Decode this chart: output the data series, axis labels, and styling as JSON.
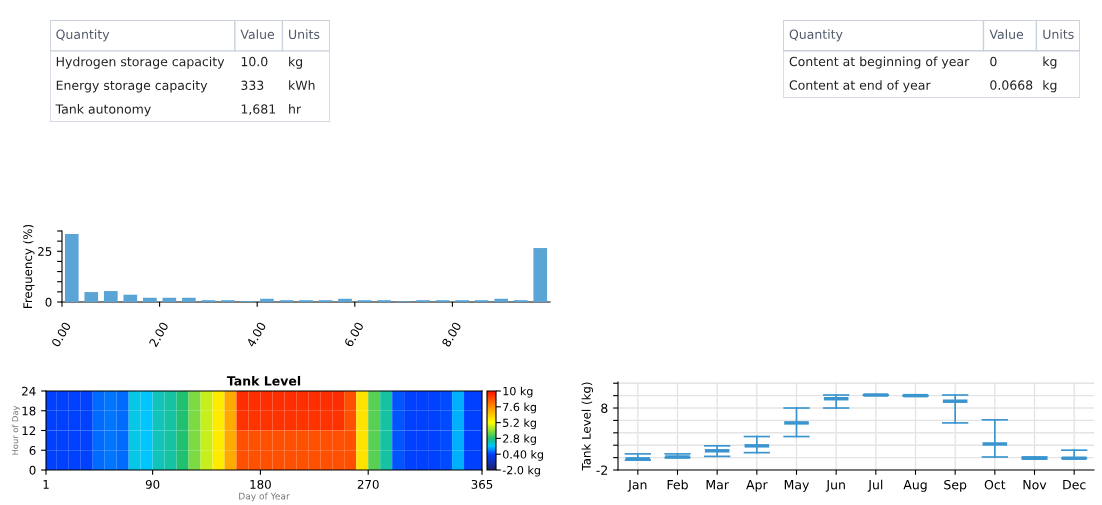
{
  "chart_data": [
    {
      "type": "other",
      "categories": [
        "Quantity",
        "Value",
        "Units"
      ],
      "cell_labels": [
        [
          "Hydrogen storage capacity",
          "10.0",
          "kg"
        ],
        [
          "Energy storage capacity",
          "333",
          "kWh"
        ],
        [
          "Tank autonomy",
          "1,681",
          "hr"
        ]
      ]
    },
    {
      "type": "other",
      "categories": [
        "Quantity",
        "Value",
        "Units"
      ],
      "cell_labels": [
        [
          "Content at beginning of year",
          "0",
          "kg"
        ],
        [
          "Content at end of year",
          "0.0668",
          "kg"
        ]
      ]
    },
    {
      "type": "histogram",
      "ylabel": "Frequency (%)",
      "color": "#5aa5d6",
      "bins": [
        0,
        0.4,
        0.8,
        1.2,
        1.6,
        2.0,
        2.4,
        2.8,
        3.2,
        3.6,
        4.0,
        4.4,
        4.8,
        5.2,
        5.6,
        6.0,
        6.4,
        6.8,
        7.2,
        7.6,
        8.0,
        8.4,
        8.8,
        9.2,
        9.6,
        10.0
      ],
      "values": [
        33.5,
        4.9,
        5.4,
        3.6,
        2.1,
        2.1,
        2.1,
        0.9,
        0.9,
        0.4,
        1.6,
        0.9,
        0.9,
        0.9,
        1.6,
        0.9,
        0.9,
        0.4,
        0.9,
        0.9,
        0.9,
        0.9,
        1.6,
        0.9,
        26.6
      ],
      "xlim": [
        0,
        10
      ],
      "xticks": [
        {
          "value": 0,
          "label": "0.00"
        },
        {
          "value": 2,
          "label": "2.00"
        },
        {
          "value": 4,
          "label": "4.00"
        },
        {
          "value": 6,
          "label": "6.00"
        },
        {
          "value": 8,
          "label": "8.00"
        }
      ],
      "ylim": [
        0,
        35
      ],
      "yticks": [
        0,
        {
          "value": 5,
          "label": null
        },
        {
          "value": 10,
          "label": null
        },
        {
          "value": 15,
          "label": null
        },
        {
          "value": 20,
          "label": null
        },
        25,
        {
          "value": 30,
          "label": null
        },
        {
          "value": 35,
          "label": null
        }
      ]
    },
    {
      "type": "heatmap",
      "title": "Tank Level",
      "xlabel": "Day of Year",
      "ylabel": "Hour of Day",
      "x": [
        5,
        15,
        25,
        35,
        45,
        55,
        65,
        75,
        85,
        95,
        105,
        115,
        125,
        135,
        145,
        155,
        165,
        175,
        185,
        195,
        205,
        215,
        225,
        235,
        245,
        255,
        265,
        275,
        285,
        295,
        305,
        315,
        325,
        335,
        345,
        355,
        365
      ],
      "y": [
        21,
        15,
        9,
        3
      ],
      "cells": [
        [
          0.4,
          0.4,
          0.4,
          0.4,
          0.8,
          0.9,
          0.8,
          1.8,
          1.6,
          2.2,
          2.4,
          2.8,
          3.8,
          4.6,
          5.6,
          7.0,
          9.4,
          9.4,
          9.4,
          9.4,
          9.4,
          9.4,
          9.4,
          9.4,
          9.4,
          8.8,
          5.8,
          3.4,
          2.4,
          0.6,
          0.4,
          0.4,
          0.4,
          0.5,
          1.4,
          0.4,
          0.4
        ],
        [
          0.4,
          0.4,
          0.4,
          0.4,
          0.8,
          0.9,
          0.8,
          1.8,
          1.6,
          2.2,
          2.4,
          2.8,
          3.8,
          4.6,
          5.6,
          7.0,
          9.3,
          9.3,
          9.3,
          9.3,
          9.3,
          9.3,
          9.3,
          9.3,
          9.3,
          8.8,
          5.8,
          3.4,
          2.4,
          0.6,
          0.4,
          0.4,
          0.4,
          0.5,
          1.4,
          0.4,
          0.4
        ],
        [
          0.4,
          0.4,
          0.4,
          0.4,
          0.8,
          0.9,
          0.8,
          1.8,
          1.6,
          2.2,
          2.4,
          2.8,
          3.8,
          4.6,
          5.6,
          7.0,
          8.8,
          8.8,
          8.8,
          8.8,
          8.8,
          8.8,
          8.8,
          8.8,
          8.8,
          8.8,
          5.8,
          3.4,
          2.4,
          0.6,
          0.4,
          0.4,
          0.4,
          0.5,
          1.4,
          0.4,
          0.4
        ],
        [
          0.4,
          0.4,
          0.4,
          0.4,
          0.8,
          0.9,
          0.8,
          1.8,
          1.6,
          2.2,
          2.4,
          2.8,
          3.8,
          4.6,
          5.6,
          7.0,
          8.8,
          8.8,
          8.8,
          8.8,
          8.8,
          8.8,
          8.8,
          8.8,
          8.8,
          8.8,
          5.8,
          3.4,
          2.4,
          0.6,
          0.4,
          0.4,
          0.4,
          0.5,
          1.4,
          0.4,
          0.4
        ]
      ],
      "xlim": [
        1,
        365
      ],
      "xticks": [
        1,
        90,
        180,
        270,
        365
      ],
      "ylim": [
        0,
        24
      ],
      "yticks": [
        0,
        6,
        12,
        18,
        24
      ],
      "clim": [
        -2,
        10
      ],
      "cticks": [
        {
          "value": -2,
          "label": "-2.0 kg"
        },
        {
          "value": 0.4,
          "label": "0.40 kg"
        },
        {
          "value": 2.8,
          "label": "2.8 kg"
        },
        {
          "value": 5.2,
          "label": "5.2 kg"
        },
        {
          "value": 7.6,
          "label": "7.6 kg"
        },
        {
          "value": 10,
          "label": "10 kg"
        }
      ]
    },
    {
      "type": "box",
      "ylabel": "Tank Level (kg)",
      "color": "#3a95cf",
      "grid": true,
      "categories": [
        "Jan",
        "Feb",
        "Mar",
        "Apr",
        "May",
        "Jun",
        "Jul",
        "Aug",
        "Sep",
        "Oct",
        "Nov",
        "Dec"
      ],
      "boxes": [
        {
          "low": -0.4,
          "q1": -0.2,
          "median": -0.2,
          "q3": -0.2,
          "high": 0.6
        },
        {
          "low": 0.0,
          "q1": 0.1,
          "median": 0.1,
          "q3": 0.1,
          "high": 0.6
        },
        {
          "low": 0.2,
          "q1": 1.1,
          "median": 1.1,
          "q3": 1.1,
          "high": 1.9
        },
        {
          "low": 0.8,
          "q1": 1.9,
          "median": 1.9,
          "q3": 1.9,
          "high": 3.4
        },
        {
          "low": 3.4,
          "q1": 5.6,
          "median": 5.6,
          "q3": 5.6,
          "high": 8.0
        },
        {
          "low": 8.0,
          "q1": 9.5,
          "median": 9.5,
          "q3": 9.5,
          "high": 10.1
        },
        {
          "low": 10.1,
          "q1": 10.1,
          "median": 10.1,
          "q3": 10.1,
          "high": 10.1
        },
        {
          "low": 10.0,
          "q1": 10.0,
          "median": 10.0,
          "q3": 10.0,
          "high": 10.0
        },
        {
          "low": 5.6,
          "q1": 9.1,
          "median": 9.1,
          "q3": 9.1,
          "high": 10.1
        },
        {
          "low": 0.1,
          "q1": 2.2,
          "median": 2.2,
          "q3": 2.2,
          "high": 6.1
        },
        {
          "low": -0.2,
          "q1": -0.1,
          "median": -0.1,
          "q3": -0.1,
          "high": 0.1
        },
        {
          "low": -0.1,
          "q1": -0.1,
          "median": -0.1,
          "q3": -0.1,
          "high": 1.2
        }
      ],
      "ylim": [
        -2,
        12.2
      ],
      "yticks": [
        -2,
        {
          "value": 0,
          "label": null
        },
        {
          "value": 2,
          "label": null
        },
        {
          "value": 4,
          "label": null
        },
        {
          "value": 6,
          "label": null
        },
        8,
        {
          "value": 10,
          "label": null
        },
        {
          "value": 12,
          "label": null
        }
      ]
    }
  ]
}
